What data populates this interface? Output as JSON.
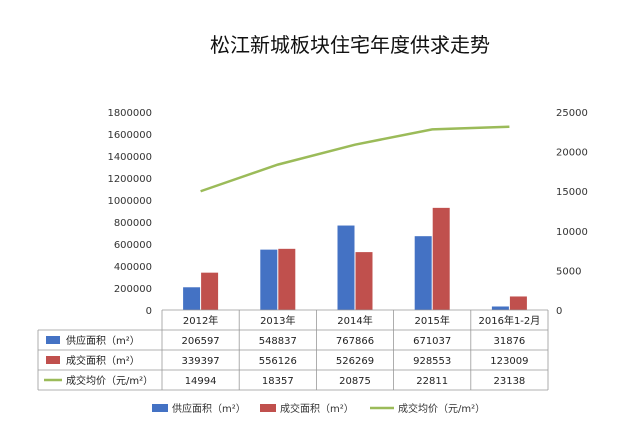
{
  "chart_data": {
    "type": "bar",
    "title": "松江新城板块住宅年度供求走势",
    "categories": [
      "2012年",
      "2013年",
      "2014年",
      "2015年",
      "2016年1-2月"
    ],
    "series": [
      {
        "name": "供应面积（m²）",
        "type": "bar",
        "axis": "left",
        "color": "#4472C4",
        "values": [
          206597,
          548837,
          767866,
          671037,
          31876
        ]
      },
      {
        "name": "成交面积（m²）",
        "type": "bar",
        "axis": "left",
        "color": "#C0504D",
        "values": [
          339397,
          556126,
          526269,
          928553,
          123009
        ]
      },
      {
        "name": "成交均价（元/m²）",
        "type": "line",
        "axis": "right",
        "color": "#9BBB59",
        "values": [
          14994,
          18357,
          20875,
          22811,
          23138
        ]
      }
    ],
    "table_values": [
      [
        "206597",
        "548837",
        "767866",
        "671037",
        "31876"
      ],
      [
        "339397",
        "556126",
        "526269",
        "928553",
        "123009"
      ],
      [
        "14994",
        "18357",
        "20875",
        "22811",
        "23138"
      ]
    ],
    "ylim_left": [
      0,
      1800000
    ],
    "ylim_right": [
      0,
      25000
    ],
    "left_ticks": [
      "0",
      "200000",
      "400000",
      "600000",
      "800000",
      "1000000",
      "1200000",
      "1400000",
      "1600000",
      "1800000"
    ],
    "right_ticks": [
      "0",
      "5000",
      "10000",
      "15000",
      "20000",
      "25000"
    ],
    "table_legend_labels": [
      "供应面积（m²）",
      "成交面积（m²）",
      "成交均价（元/m²）"
    ],
    "legend": [
      "供应面积（m²）",
      "成交面积（m²）",
      "成交均价（元/m²）"
    ],
    "grid": false,
    "legend_position": "bottom"
  }
}
